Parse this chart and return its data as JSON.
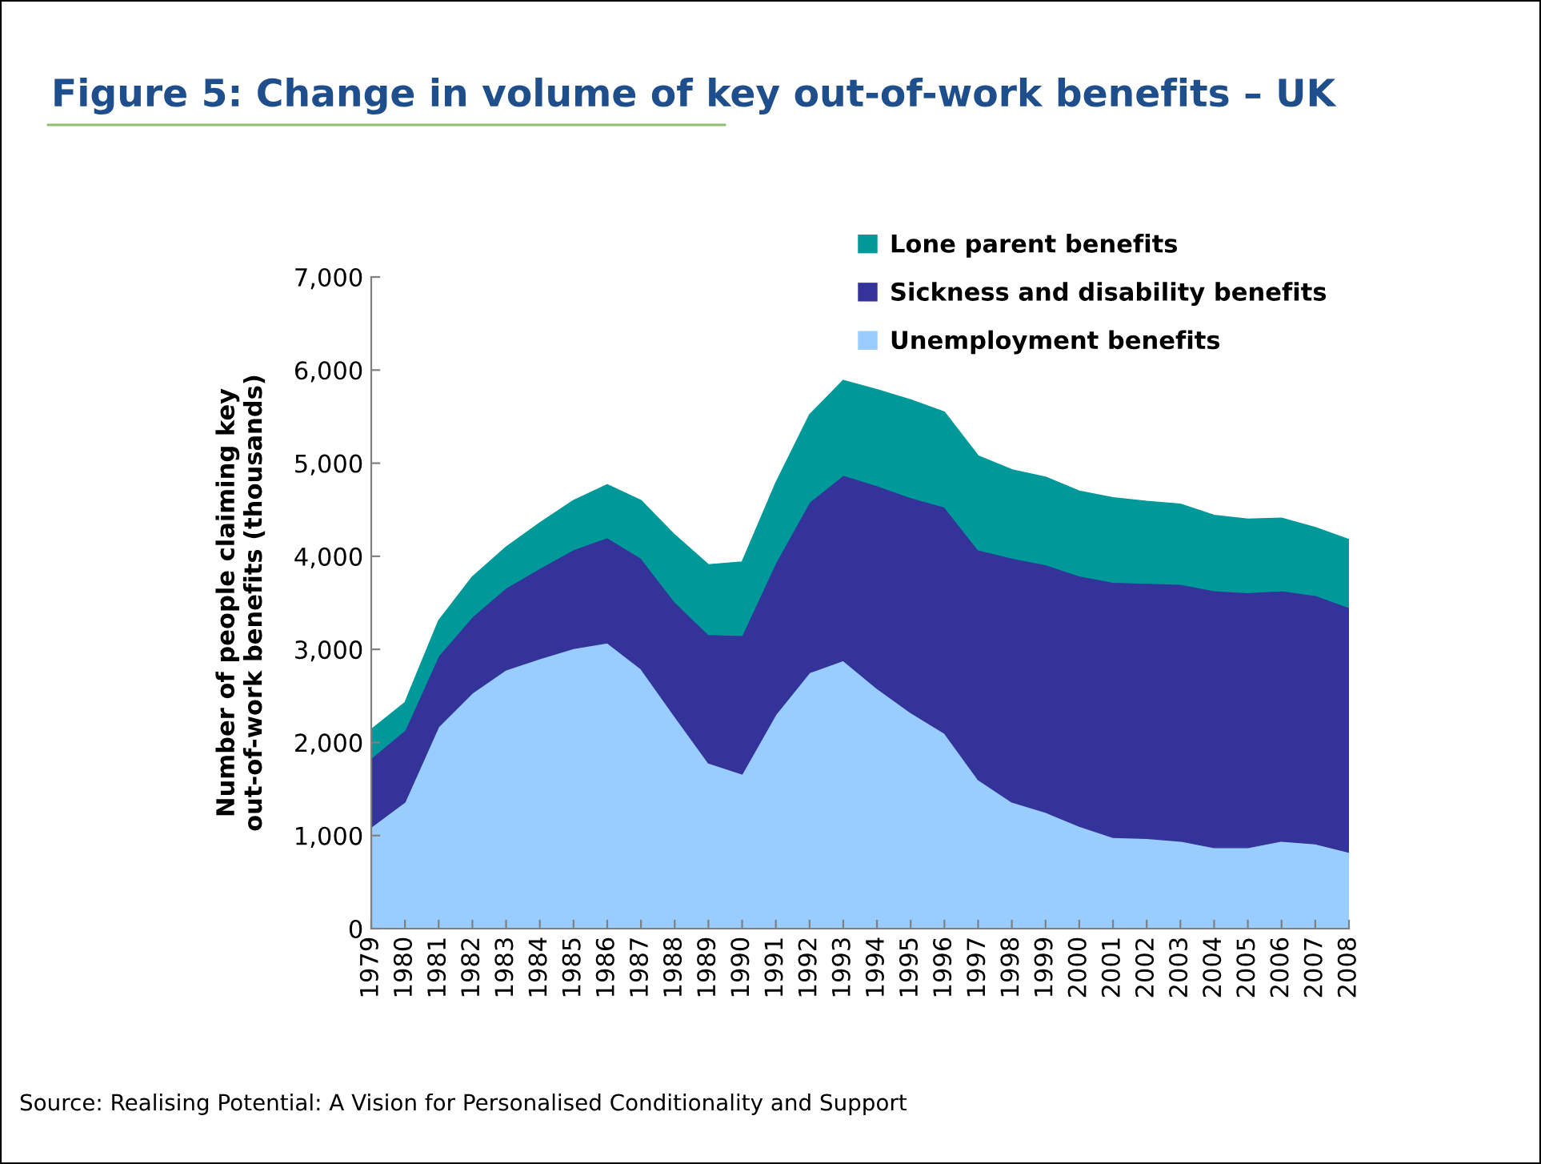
{
  "chart_data": {
    "type": "area",
    "stacked": true,
    "title": "Figure 5: Change in volume of key out-of-work benefits – UK",
    "ylabel": "Number of people claiming key\nout-of-work benefits (thousands)",
    "categories": [
      "1979",
      "1980",
      "1981",
      "1982",
      "1983",
      "1984",
      "1985",
      "1986",
      "1987",
      "1988",
      "1989",
      "1990",
      "1991",
      "1992",
      "1993",
      "1994",
      "1995",
      "1996",
      "1997",
      "1998",
      "1999",
      "2000",
      "2001",
      "2002",
      "2003",
      "2004",
      "2005",
      "2006",
      "2007",
      "2008"
    ],
    "series": [
      {
        "name": "Unemployment benefits",
        "color": "#99ccff",
        "values": [
          1090,
          1360,
          2170,
          2530,
          2780,
          2900,
          3010,
          3070,
          2790,
          2280,
          1780,
          1660,
          2300,
          2750,
          2880,
          2580,
          2320,
          2100,
          1600,
          1360,
          1250,
          1100,
          980,
          970,
          940,
          870,
          870,
          940,
          910,
          820
        ]
      },
      {
        "name": "Sickness and disability benefits",
        "color": "#333399",
        "values": [
          740,
          770,
          760,
          820,
          880,
          970,
          1060,
          1130,
          1190,
          1230,
          1380,
          1490,
          1630,
          1830,
          1990,
          2180,
          2310,
          2430,
          2470,
          2620,
          2660,
          2690,
          2740,
          2740,
          2760,
          2760,
          2740,
          2690,
          2670,
          2630
        ]
      },
      {
        "name": "Lone parent benefits",
        "color": "#009999",
        "values": [
          310,
          300,
          380,
          430,
          440,
          490,
          530,
          570,
          620,
          720,
          750,
          790,
          860,
          940,
          1020,
          1030,
          1050,
          1020,
          1010,
          950,
          940,
          910,
          910,
          880,
          860,
          810,
          790,
          780,
          730,
          730
        ]
      }
    ],
    "ylim": [
      0,
      7000
    ],
    "yticks": [
      {
        "value": 0,
        "label": "0"
      },
      {
        "value": 1000,
        "label": "1,000"
      },
      {
        "value": 2000,
        "label": "2,000"
      },
      {
        "value": 3000,
        "label": "3,000"
      },
      {
        "value": 4000,
        "label": "4,000"
      },
      {
        "value": 5000,
        "label": "5,000"
      },
      {
        "value": 6000,
        "label": "6,000"
      },
      {
        "value": 7000,
        "label": "7,000"
      }
    ],
    "grid": false,
    "legend": "top right",
    "annotations": [
      "Source: Realising Potential: A Vision for Personalised Conditionality and Support"
    ]
  }
}
